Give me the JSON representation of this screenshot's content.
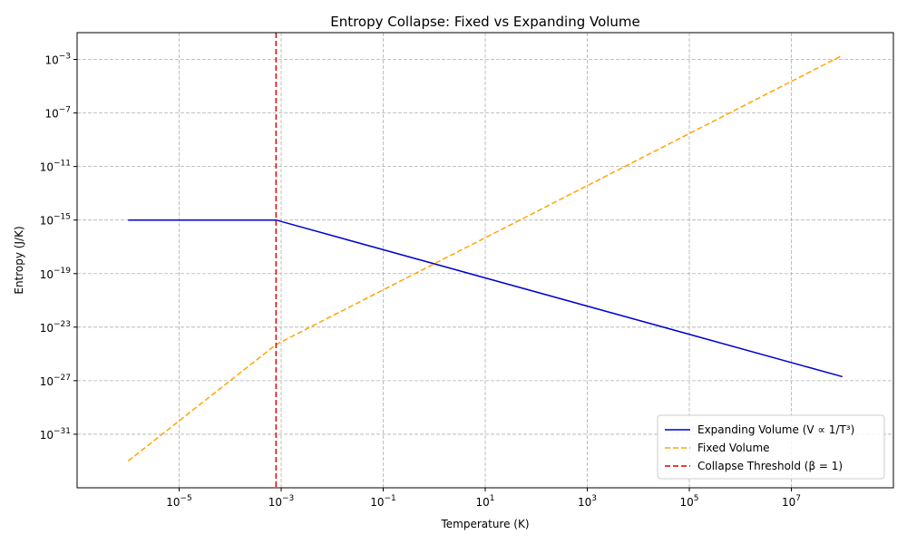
{
  "chart_data": {
    "type": "line",
    "title": "Entropy Collapse: Fixed vs Expanding Volume",
    "xlabel": "Temperature (K)",
    "ylabel": "Entropy (J/K)",
    "xscale": "log",
    "yscale": "log",
    "xlim": [
      1e-07,
      1000000000.0
    ],
    "ylim": [
      1e-35,
      0.1
    ],
    "x_ticks": [
      {
        "value": 1e-05,
        "base": "10",
        "exp": "−5"
      },
      {
        "value": 0.001,
        "base": "10",
        "exp": "−3"
      },
      {
        "value": 0.1,
        "base": "10",
        "exp": "−1"
      },
      {
        "value": 10.0,
        "base": "10",
        "exp": "1"
      },
      {
        "value": 1000.0,
        "base": "10",
        "exp": "3"
      },
      {
        "value": 100000.0,
        "base": "10",
        "exp": "5"
      },
      {
        "value": 10000000.0,
        "base": "10",
        "exp": "7"
      }
    ],
    "y_ticks": [
      {
        "value": 0.001,
        "base": "10",
        "exp": "−3"
      },
      {
        "value": 1e-07,
        "base": "10",
        "exp": "−7"
      },
      {
        "value": 1e-11,
        "base": "10",
        "exp": "−11"
      },
      {
        "value": 1e-15,
        "base": "10",
        "exp": "−15"
      },
      {
        "value": 1e-19,
        "base": "10",
        "exp": "−19"
      },
      {
        "value": 1e-23,
        "base": "10",
        "exp": "−23"
      },
      {
        "value": 1e-27,
        "base": "10",
        "exp": "−27"
      },
      {
        "value": 1e-31,
        "base": "10",
        "exp": "−31"
      }
    ],
    "grid": true,
    "legend_position": "lower-right",
    "series": [
      {
        "name": "Expanding Volume (V ∝ 1/T³)",
        "color": "#0000cd",
        "style": "solid",
        "points": [
          [
            1e-06,
            1e-15
          ],
          [
            0.000794,
            1e-15
          ],
          [
            100000000.0,
            2e-27
          ]
        ]
      },
      {
        "name": "Fixed Volume",
        "color": "#ffa500",
        "style": "dashed",
        "points": [
          [
            1e-06,
            1e-33
          ],
          [
            0.000794,
            5e-25
          ],
          [
            100000000.0,
            0.002
          ]
        ]
      }
    ],
    "vlines": [
      {
        "name": "Collapse Threshold (β = 1)",
        "color": "#e00000",
        "style": "dashed",
        "x": 0.000794
      }
    ]
  }
}
